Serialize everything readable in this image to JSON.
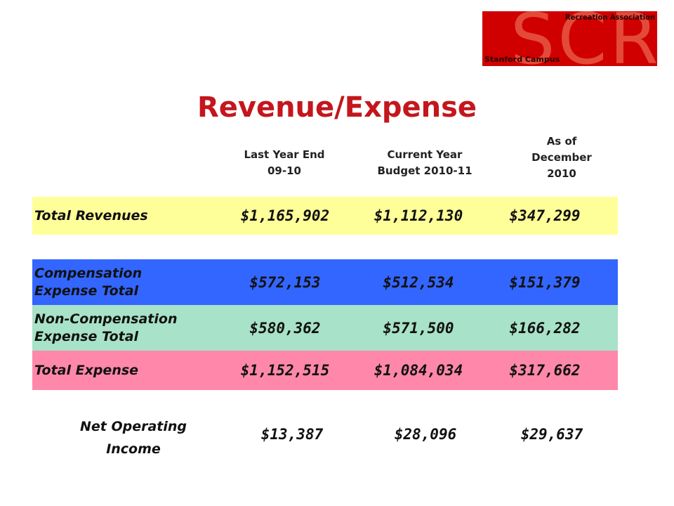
{
  "logo": {
    "big_text": "SCRA",
    "top_text": "Recreation Association",
    "bottom_text": "Stanford Campus"
  },
  "title": "Revenue/Expense",
  "columns": [
    {
      "line1": "Last Year End",
      "line2": "09-10",
      "line3": ""
    },
    {
      "line1": "Current Year",
      "line2": "Budget 2010-11",
      "line3": ""
    },
    {
      "line1": "As of",
      "line2": "December",
      "line3": "2010"
    }
  ],
  "rows": [
    {
      "label_line1": "Total Revenues",
      "label_line2": "",
      "values": [
        "$1,165,902",
        "$1,112,130",
        "$347,299"
      ],
      "color": "#ffff99"
    },
    {
      "label_line1": "Compensation",
      "label_line2": "Expense Total",
      "values": [
        "$572,153",
        "$512,534",
        "$151,379"
      ],
      "color": "#3366ff"
    },
    {
      "label_line1": "Non-Compensation",
      "label_line2": "Expense Total",
      "values": [
        "$580,362",
        "$571,500",
        "$166,282"
      ],
      "color": "#a8e2c8"
    },
    {
      "label_line1": "Total Expense",
      "label_line2": "",
      "values": [
        "$1,152,515",
        "$1,084,034",
        "$317,662"
      ],
      "color": "#ff88aa"
    }
  ],
  "net": {
    "label_line1": "Net Operating",
    "label_line2": "Income",
    "values": [
      "$13,387",
      "$28,096",
      "$29,637"
    ]
  }
}
